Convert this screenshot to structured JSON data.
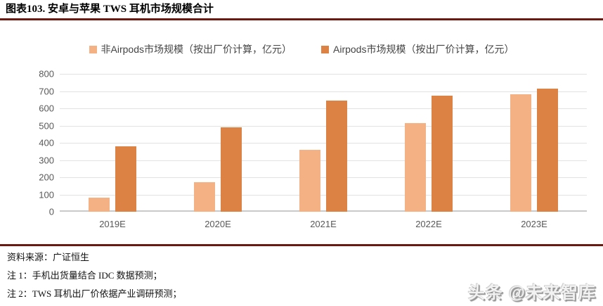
{
  "header": {
    "title": "图表103. 安卓与苹果 TWS 耳机市场规模合计"
  },
  "chart_data": {
    "type": "bar",
    "categories": [
      "2019E",
      "2020E",
      "2021E",
      "2022E",
      "2023E"
    ],
    "series": [
      {
        "name": "非Airpods市场规模（按出厂价计算，亿元）",
        "color": "#F4B183",
        "values": [
          80,
          170,
          360,
          515,
          680
        ]
      },
      {
        "name": "Airpods市场规模（按出厂价计算，亿元）",
        "color": "#DB8244",
        "values": [
          380,
          490,
          645,
          675,
          715
        ]
      }
    ],
    "title": "",
    "xlabel": "",
    "ylabel": "",
    "ylim": [
      0,
      800
    ],
    "yticks": [
      0,
      100,
      200,
      300,
      400,
      500,
      600,
      700,
      800
    ],
    "grid": true,
    "legend_position": "top-center"
  },
  "footer": {
    "source": "资料来源：广证恒生",
    "note1": "注 1：手机出货量结合 IDC 数据预测；",
    "note2": "注 2：TWS 耳机出厂价依据产业调研预测；"
  },
  "watermark": {
    "text": "头条 @未来智库"
  },
  "colors": {
    "rule": "#6B1A12",
    "gridline": "#e2e2e2",
    "axis_line": "#c9c9c9",
    "tick_text": "#595959"
  }
}
